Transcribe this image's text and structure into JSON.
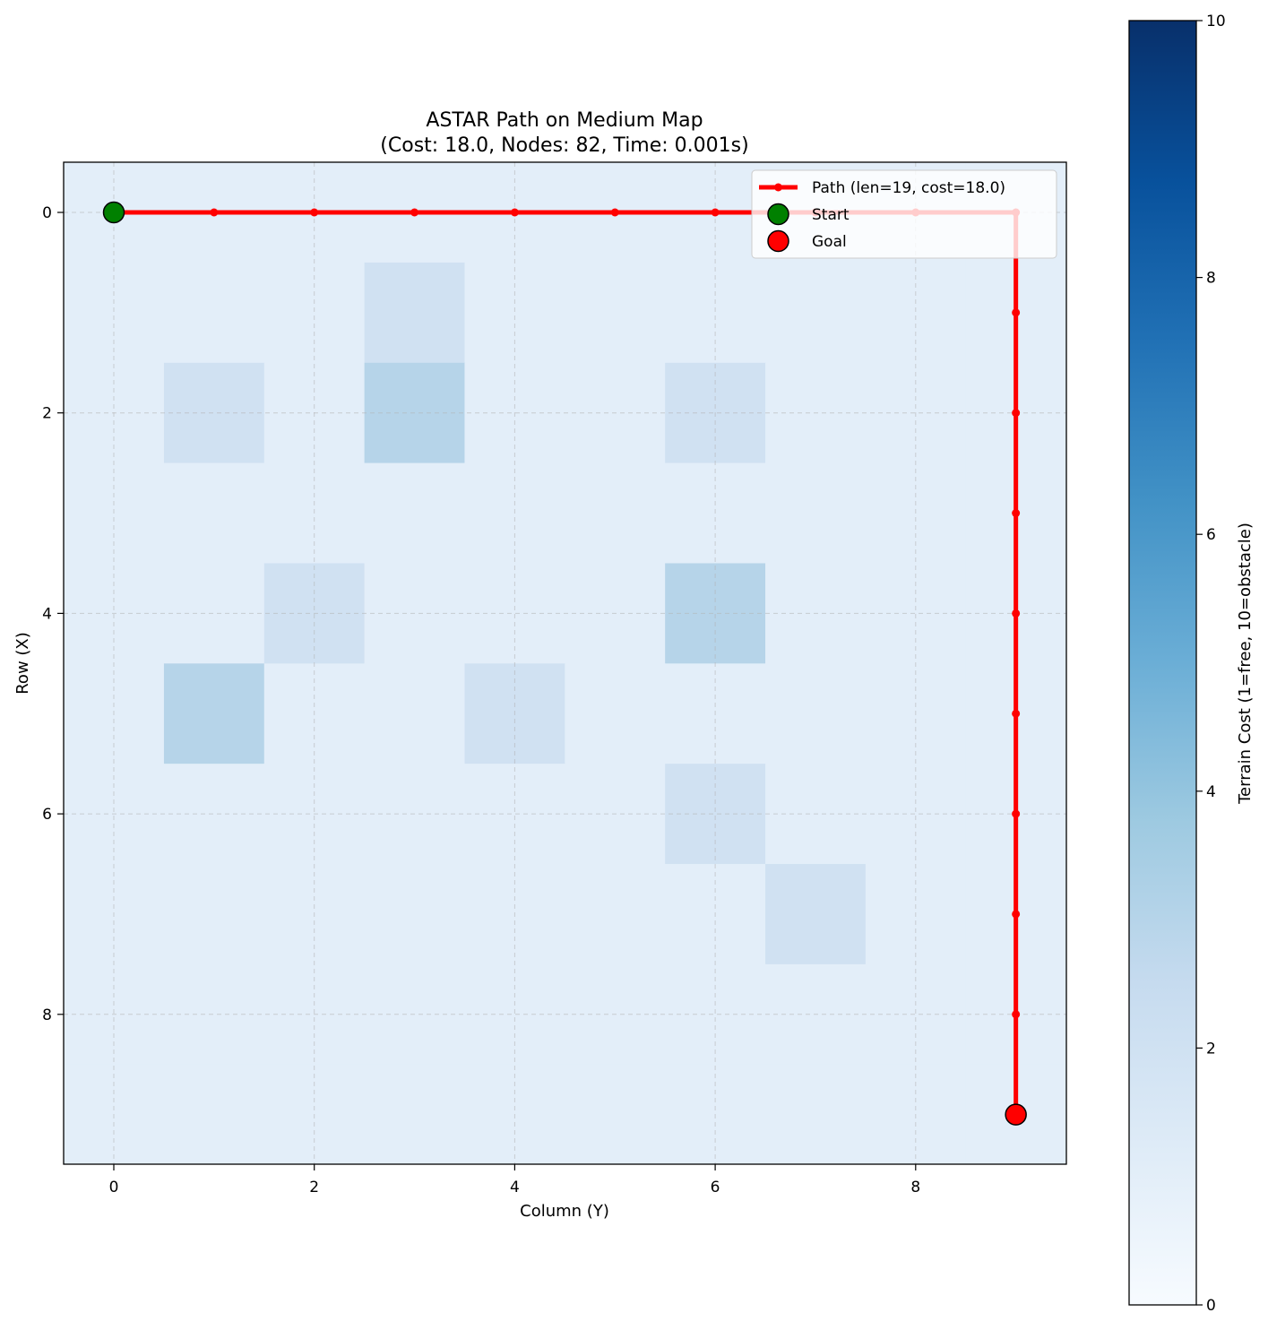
{
  "chart_data": {
    "type": "heatmap",
    "title_line1": "ASTAR Path on Medium Map",
    "title_line2": "(Cost: 18.0, Nodes: 82, Time: 0.001s)",
    "xlabel": "Column (Y)",
    "ylabel": "Row (X)",
    "xticks": [
      "0",
      "2",
      "4",
      "6",
      "8"
    ],
    "yticks": [
      "0",
      "2",
      "4",
      "6",
      "8"
    ],
    "grid_size": [
      10,
      10
    ],
    "grid": true,
    "colormap": "Blues",
    "colorbar": {
      "label": "Terrain Cost (1=free, 10=obstacle)",
      "range": [
        0,
        10
      ],
      "ticks": [
        "0",
        "2",
        "4",
        "6",
        "8",
        "10"
      ]
    },
    "terrain_cells": [
      {
        "row": 1,
        "col": 3,
        "cost": 2
      },
      {
        "row": 2,
        "col": 1,
        "cost": 2
      },
      {
        "row": 2,
        "col": 3,
        "cost": 3
      },
      {
        "row": 2,
        "col": 6,
        "cost": 2
      },
      {
        "row": 4,
        "col": 2,
        "cost": 2
      },
      {
        "row": 4,
        "col": 6,
        "cost": 3
      },
      {
        "row": 5,
        "col": 1,
        "cost": 3
      },
      {
        "row": 5,
        "col": 4,
        "cost": 2
      },
      {
        "row": 6,
        "col": 6,
        "cost": 2
      },
      {
        "row": 7,
        "col": 7,
        "cost": 2
      }
    ],
    "default_cost": 1,
    "path": [
      [
        0,
        0
      ],
      [
        0,
        1
      ],
      [
        0,
        2
      ],
      [
        0,
        3
      ],
      [
        0,
        4
      ],
      [
        0,
        5
      ],
      [
        0,
        6
      ],
      [
        0,
        7
      ],
      [
        0,
        8
      ],
      [
        0,
        9
      ],
      [
        1,
        9
      ],
      [
        2,
        9
      ],
      [
        3,
        9
      ],
      [
        4,
        9
      ],
      [
        5,
        9
      ],
      [
        6,
        9
      ],
      [
        7,
        9
      ],
      [
        8,
        9
      ],
      [
        9,
        9
      ]
    ],
    "start": [
      0,
      0
    ],
    "goal": [
      9,
      9
    ],
    "legend": {
      "position": "upper right",
      "items": [
        "Path (len=19, cost=18.0)",
        "Start",
        "Goal"
      ]
    },
    "colors": {
      "path": "#ff0000",
      "start": "#008000",
      "goal": "#ff0000"
    }
  }
}
